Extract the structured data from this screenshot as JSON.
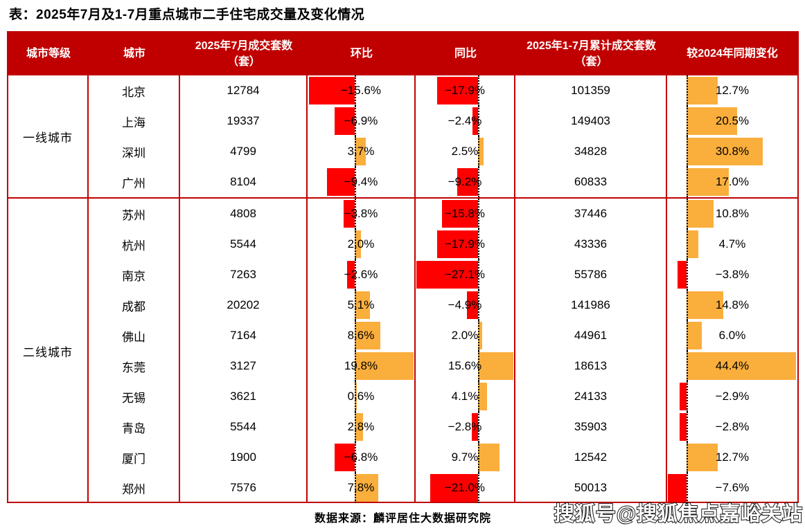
{
  "title": "表：2025年7月及1-7月重点城市二手住宅成交量及变化情况",
  "source_note": "数据来源：麟评居住大数据研究院",
  "watermark": "搜狐号@搜狐焦点嘉峪关站",
  "colors": {
    "header_bg": "#c00000",
    "table_border": "#c00000",
    "negative_bar": "#fe0000",
    "positive_bar": "#faae3c",
    "header_text": "#ffffff",
    "body_text": "#000000"
  },
  "chart_data": {
    "type": "table",
    "title": "表：2025年7月及1-7月重点城市二手住宅成交量及变化情况",
    "headers": [
      "城市等级",
      "城市",
      "2025年7月成交套数（套）",
      "环比",
      "同比",
      "2025年1-7月累计成交套数（套）",
      "较2024年同期变化"
    ],
    "bar_axes": {
      "mom": {
        "header": "环比",
        "min": -16,
        "max": 20
      },
      "yoy": {
        "header": "同比",
        "min": -27.5,
        "max": 16
      },
      "vs2024": {
        "header": "较2024年同期变化",
        "min": -8,
        "max": 45
      }
    },
    "tier_groups": [
      {
        "tier": "一线城市",
        "rows": [
          {
            "city": "北京",
            "jul_units": "12784",
            "mom": -15.6,
            "mom_label": "−15.6%",
            "yoy": -17.9,
            "yoy_label": "−17.9%",
            "cum_units": "101359",
            "vs2024": 12.7,
            "vs2024_label": "12.7%"
          },
          {
            "city": "上海",
            "jul_units": "19337",
            "mom": -6.9,
            "mom_label": "−6.9%",
            "yoy": -2.4,
            "yoy_label": "−2.4%",
            "cum_units": "149403",
            "vs2024": 20.5,
            "vs2024_label": "20.5%"
          },
          {
            "city": "深圳",
            "jul_units": "4799",
            "mom": 3.7,
            "mom_label": "3.7%",
            "yoy": 2.5,
            "yoy_label": "2.5%",
            "cum_units": "34828",
            "vs2024": 30.8,
            "vs2024_label": "30.8%"
          },
          {
            "city": "广州",
            "jul_units": "8104",
            "mom": -9.4,
            "mom_label": "−9.4%",
            "yoy": -9.2,
            "yoy_label": "−9.2%",
            "cum_units": "60833",
            "vs2024": 17.0,
            "vs2024_label": "17.0%"
          }
        ]
      },
      {
        "tier": "二线城市",
        "rows": [
          {
            "city": "苏州",
            "jul_units": "4808",
            "mom": -3.8,
            "mom_label": "−3.8%",
            "yoy": -15.8,
            "yoy_label": "−15.8%",
            "cum_units": "37446",
            "vs2024": 10.8,
            "vs2024_label": "10.8%"
          },
          {
            "city": "杭州",
            "jul_units": "5544",
            "mom": 2.0,
            "mom_label": "2.0%",
            "yoy": -17.9,
            "yoy_label": "−17.9%",
            "cum_units": "43336",
            "vs2024": 4.7,
            "vs2024_label": "4.7%"
          },
          {
            "city": "南京",
            "jul_units": "7263",
            "mom": -2.6,
            "mom_label": "−2.6%",
            "yoy": -27.1,
            "yoy_label": "−27.1%",
            "cum_units": "55786",
            "vs2024": -3.8,
            "vs2024_label": "−3.8%"
          },
          {
            "city": "成都",
            "jul_units": "20202",
            "mom": 5.1,
            "mom_label": "5.1%",
            "yoy": -4.9,
            "yoy_label": "−4.9%",
            "cum_units": "141986",
            "vs2024": 14.8,
            "vs2024_label": "14.8%"
          },
          {
            "city": "佛山",
            "jul_units": "7164",
            "mom": 8.6,
            "mom_label": "8.6%",
            "yoy": 2.0,
            "yoy_label": "2.0%",
            "cum_units": "44961",
            "vs2024": 6.0,
            "vs2024_label": "6.0%"
          },
          {
            "city": "东莞",
            "jul_units": "3127",
            "mom": 19.8,
            "mom_label": "19.8%",
            "yoy": 15.6,
            "yoy_label": "15.6%",
            "cum_units": "18613",
            "vs2024": 44.4,
            "vs2024_label": "44.4%"
          },
          {
            "city": "无锡",
            "jul_units": "3621",
            "mom": 0.6,
            "mom_label": "0.6%",
            "yoy": 4.1,
            "yoy_label": "4.1%",
            "cum_units": "24133",
            "vs2024": -2.9,
            "vs2024_label": "−2.9%"
          },
          {
            "city": "青岛",
            "jul_units": "5544",
            "mom": 2.8,
            "mom_label": "2.8%",
            "yoy": -2.8,
            "yoy_label": "−2.8%",
            "cum_units": "35903",
            "vs2024": -2.8,
            "vs2024_label": "−2.8%"
          },
          {
            "city": "厦门",
            "jul_units": "1900",
            "mom": -6.8,
            "mom_label": "−6.8%",
            "yoy": 9.7,
            "yoy_label": "9.7%",
            "cum_units": "12542",
            "vs2024": 12.7,
            "vs2024_label": "12.7%"
          },
          {
            "city": "郑州",
            "jul_units": "7576",
            "mom": 7.8,
            "mom_label": "7.8%",
            "yoy": -21.0,
            "yoy_label": "−21.0%",
            "cum_units": "50013",
            "vs2024": -7.6,
            "vs2024_label": "−7.6%"
          }
        ]
      }
    ]
  }
}
